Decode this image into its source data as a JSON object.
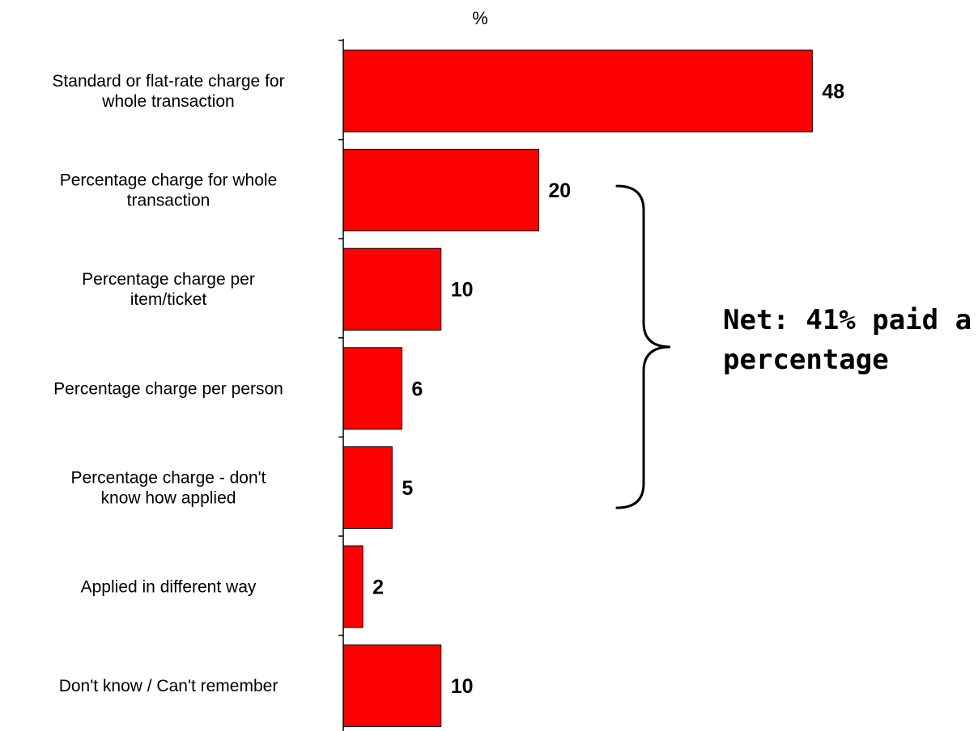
{
  "chart_data": {
    "type": "bar",
    "orientation": "horizontal",
    "unit_label": "%",
    "categories": [
      [
        "Standard or flat-rate charge for",
        "whole transaction"
      ],
      [
        "Percentage charge for whole",
        "transaction"
      ],
      [
        "Percentage charge per",
        "item/ticket"
      ],
      [
        "Percentage charge per person"
      ],
      [
        "Percentage charge - don't",
        "know how applied"
      ],
      [
        "Applied in different way"
      ],
      [
        "Don't know / Can't remember"
      ]
    ],
    "values": [
      48,
      20,
      10,
      6,
      5,
      2,
      10
    ],
    "data_labels": [
      "48",
      "20",
      "10",
      "6",
      "5",
      "2",
      "10"
    ],
    "xlim": [
      0,
      50
    ],
    "bar_color": "#ff0000",
    "bar_border_color": "#000000",
    "grid": false,
    "legend": "none",
    "annotation": {
      "lines": [
        "Net: 41% paid a",
        "percentage"
      ],
      "bracket_spans_categories": [
        1,
        4
      ]
    }
  }
}
